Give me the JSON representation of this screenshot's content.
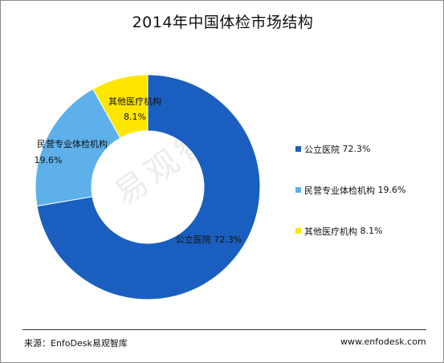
{
  "title": "2014年中国体检市场结构",
  "watermark": "易观智库",
  "source": "来源：EnfoDesk易观智库",
  "website": "www.enfodesk.com",
  "chart_data": {
    "type": "pie",
    "title": "2014年中国体检市场结构",
    "categories": [
      "公立医院",
      "民营专业体检机构",
      "其他医疗机构"
    ],
    "values": [
      72.3,
      19.6,
      8.1
    ],
    "value_labels": [
      "72.3%",
      "19.6%",
      "8.1%"
    ],
    "colors": [
      "#1a5fbf",
      "#5db0ea",
      "#ffe600"
    ],
    "legend_position": "right",
    "legend": [
      {
        "name": "公立医院",
        "value": "72.3%"
      },
      {
        "name": "民营专业体检机构",
        "value": "19.6%"
      },
      {
        "name": "其他医疗机构",
        "value": "8.1%"
      }
    ]
  }
}
